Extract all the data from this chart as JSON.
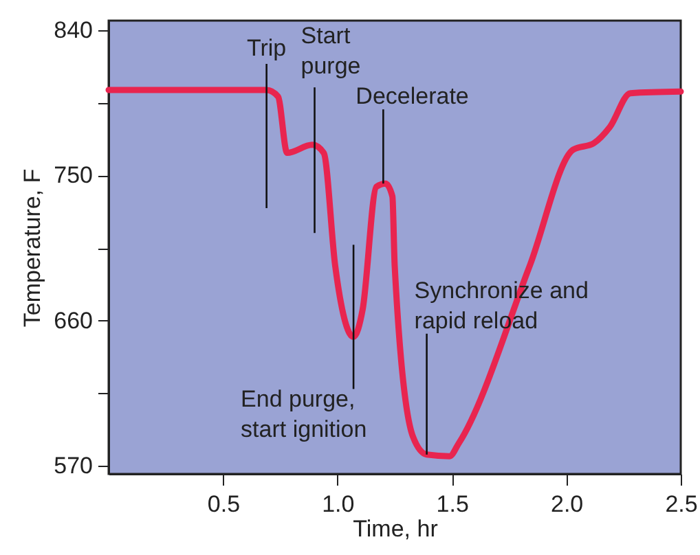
{
  "chart_data": {
    "type": "line",
    "xlabel": "Time, hr",
    "ylabel": "Temperature, F",
    "xlim": [
      0,
      2.5
    ],
    "ylim": [
      565,
      846
    ],
    "xticks": [
      0.5,
      {
        "value": 1,
        "label": "1.0"
      },
      1.5,
      {
        "value": 2,
        "label": "2.0"
      },
      2.5
    ],
    "yticks": [
      570,
      {
        "value": 615,
        "label": null
      },
      660,
      {
        "value": 705,
        "label": null
      },
      750,
      {
        "value": 795,
        "label": null
      },
      840
    ],
    "grid": false,
    "marker": "none",
    "line_style": "solid",
    "x": [
      0,
      0.69,
      0.74,
      0.78,
      0.89,
      0.94,
      0.99,
      1.07,
      1.11,
      1.17,
      1.21,
      1.24,
      1.25,
      1.33,
      1.39,
      1.49,
      1.53,
      1.84,
      2.03,
      2.12,
      2.19,
      2.28,
      2.5
    ],
    "series": [
      {
        "color": "#e8254f",
        "values": [
          803,
          803,
          799,
          764,
          769,
          764,
          694,
          650,
          667,
          743,
          745,
          737,
          694,
          588,
          577,
          576,
          584,
          694,
          766,
          770,
          780,
          801,
          802
        ]
      }
    ],
    "annotations": [
      {
        "text": "Trip",
        "x": 0.69,
        "y": 803
      },
      {
        "text": "Start\npurge",
        "x": 0.9,
        "y": 768
      },
      {
        "text": "Decelerate",
        "x": 1.2,
        "y": 745
      },
      {
        "text": "End purge,\nstart ignition",
        "x": 1.07,
        "y": 650
      },
      {
        "text": "Synchronize and\nrapid reload",
        "x": 1.39,
        "y": 577
      }
    ]
  }
}
